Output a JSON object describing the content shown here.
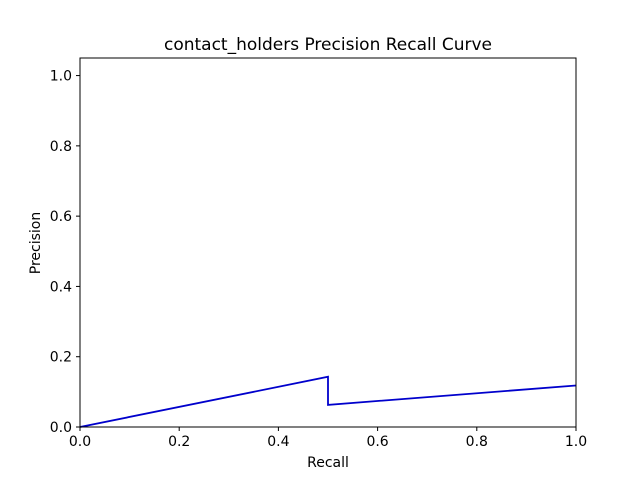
{
  "chart_data": {
    "type": "line",
    "title": "contact_holders Precision Recall Curve",
    "xlabel": "Recall",
    "ylabel": "Precision",
    "xlim": [
      0.0,
      1.0
    ],
    "ylim": [
      0.0,
      1.05
    ],
    "xticks": [
      "0.0",
      "0.2",
      "0.4",
      "0.6",
      "0.8",
      "1.0"
    ],
    "yticks": [
      "0.0",
      "0.2",
      "0.4",
      "0.6",
      "0.8",
      "1.0"
    ],
    "grid": false,
    "series": [
      {
        "color": "#0000cc",
        "x": [
          0.0,
          0.5,
          0.5,
          1.0
        ],
        "y": [
          0.0,
          0.143,
          0.063,
          0.118
        ]
      }
    ]
  }
}
